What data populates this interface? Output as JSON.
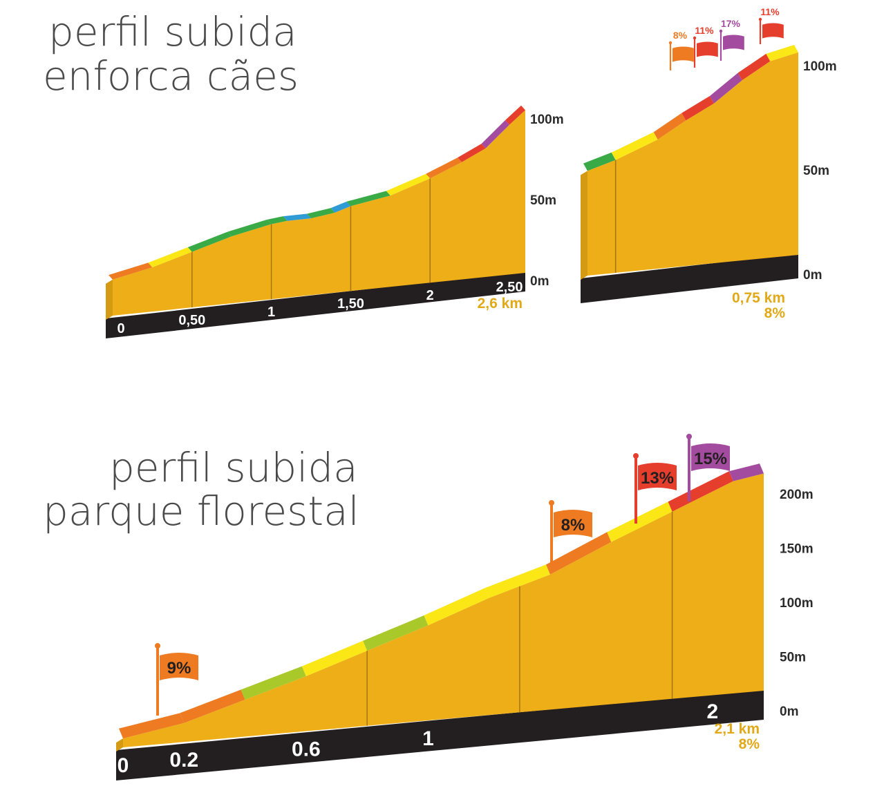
{
  "titles": {
    "enforca_line1": "perfil subida",
    "enforca_line2": "enforca cães",
    "parque_line1": "perfil subida",
    "parque_line2": "parque florestal"
  },
  "colors": {
    "body": "#eeae18",
    "base": "#231f20",
    "yellow": "#fbe715",
    "green": "#3aaa47",
    "blue": "#2e9bd5",
    "orange": "#ee7a22",
    "red": "#e63e2c",
    "purple": "#a34c9f",
    "lime": "#a9c92a",
    "label_orange": "#e2a917"
  },
  "chart_data": [
    {
      "type": "area",
      "name_from_title": "enforca cães",
      "y_ticks": [
        "0m",
        "50m",
        "100m"
      ],
      "x_ticks": [
        "0",
        "0,50",
        "1",
        "1,50",
        "2",
        "2,50"
      ],
      "distance_label": "2,6 km",
      "x": [
        0,
        0.25,
        0.5,
        0.75,
        1.0,
        1.1,
        1.25,
        1.4,
        1.5,
        1.75,
        2.0,
        2.2,
        2.35,
        2.5,
        2.6
      ],
      "elevation_m": [
        18,
        23,
        30,
        37,
        42,
        43,
        43,
        45,
        48,
        52,
        60,
        68,
        75,
        88,
        96
      ],
      "gradient_colors": [
        "orange",
        "yellow",
        "green",
        "green",
        "green",
        "blue",
        "green",
        "blue",
        "green",
        "yellow",
        "orange",
        "red",
        "purple",
        "red",
        "yellow"
      ]
    },
    {
      "type": "area",
      "name_from_title": "enforca cães (detail)",
      "y_ticks": [
        "0m",
        "50m",
        "100m"
      ],
      "distance_label": "0,75 km",
      "avg_gradient_label": "8%",
      "x": [
        0,
        0.1,
        0.25,
        0.35,
        0.45,
        0.55,
        0.65,
        0.75
      ],
      "elevation_m": [
        48,
        52,
        60,
        68,
        75,
        85,
        93,
        96
      ],
      "gradient_colors": [
        "green",
        "yellow",
        "orange",
        "red",
        "purple",
        "red",
        "yellow",
        "yellow"
      ],
      "flags": [
        {
          "label": "8%",
          "color": "orange"
        },
        {
          "label": "11%",
          "color": "red"
        },
        {
          "label": "17%",
          "color": "purple"
        },
        {
          "label": "11%",
          "color": "red"
        }
      ]
    },
    {
      "type": "area",
      "name_from_title": "parque florestal",
      "y_ticks": [
        "0m",
        "50m",
        "100m",
        "150m",
        "200m"
      ],
      "x_ticks": [
        "0",
        "0.2",
        "0.6",
        "1",
        "2"
      ],
      "distance_label": "2,1 km",
      "avg_gradient_label": "8%",
      "x": [
        0,
        0.2,
        0.4,
        0.6,
        0.8,
        1.0,
        1.2,
        1.4,
        1.6,
        1.8,
        2.0,
        2.1
      ],
      "elevation_m": [
        2,
        12,
        30,
        48,
        68,
        88,
        110,
        128,
        155,
        180,
        205,
        210
      ],
      "gradient_colors": [
        "orange",
        "orange",
        "lime",
        "yellow",
        "lime",
        "yellow",
        "yellow",
        "orange",
        "yellow",
        "red",
        "purple",
        "green"
      ],
      "flags": [
        {
          "label": "9%",
          "color": "orange"
        },
        {
          "label": "8%",
          "color": "orange"
        },
        {
          "label": "13%",
          "color": "red"
        },
        {
          "label": "15%",
          "color": "purple"
        }
      ]
    }
  ]
}
